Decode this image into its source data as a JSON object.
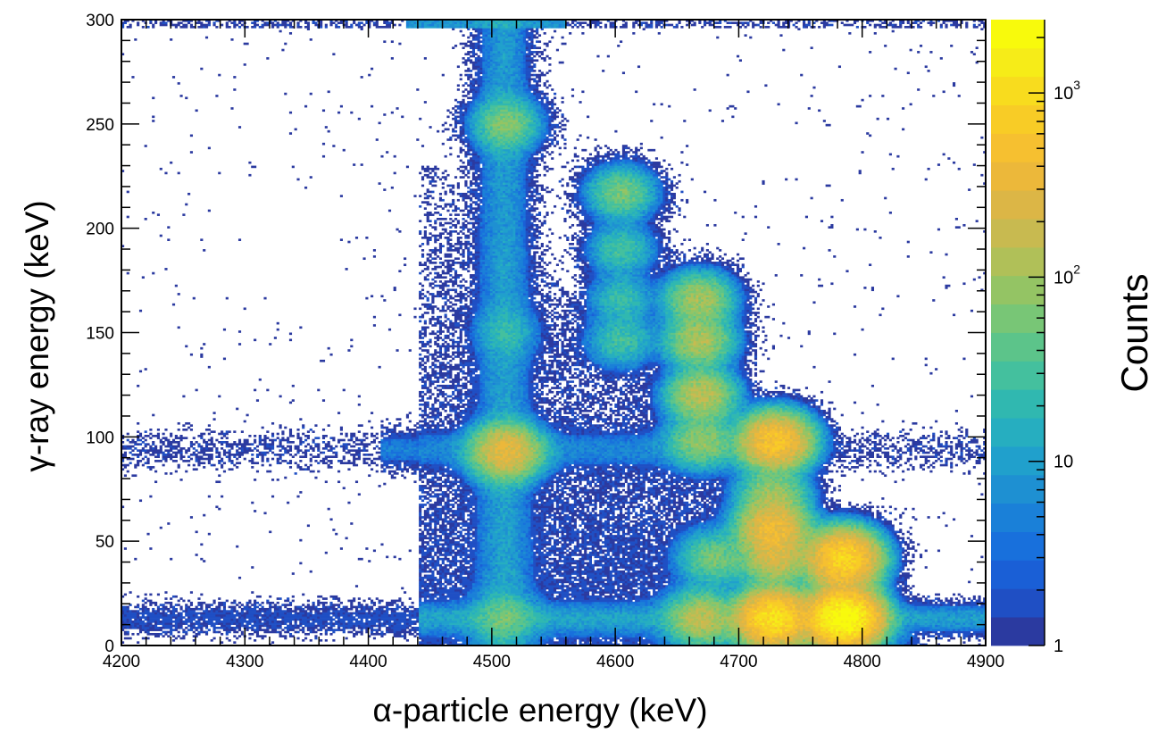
{
  "chart_data": {
    "type": "heatmap",
    "title": "",
    "xlabel": "α-particle energy (keV)",
    "ylabel": "γ-ray energy (keV)",
    "xlim": [
      4200,
      4900
    ],
    "ylim": [
      0,
      300
    ],
    "x_ticks": [
      {
        "value": 4200,
        "label": "4200"
      },
      {
        "value": 4300,
        "label": "4300"
      },
      {
        "value": 4400,
        "label": "4400"
      },
      {
        "value": 4500,
        "label": "4500"
      },
      {
        "value": 4600,
        "label": "4600"
      },
      {
        "value": 4700,
        "label": "4700"
      },
      {
        "value": 4800,
        "label": "4800"
      },
      {
        "value": 4900,
        "label": "4900"
      }
    ],
    "y_ticks": [
      {
        "value": 0,
        "label": "0"
      },
      {
        "value": 50,
        "label": "50"
      },
      {
        "value": 100,
        "label": "100"
      },
      {
        "value": 150,
        "label": "150"
      },
      {
        "value": 200,
        "label": "200"
      },
      {
        "value": 250,
        "label": "250"
      },
      {
        "value": 300,
        "label": "300"
      }
    ],
    "colorbar": {
      "title": "Counts",
      "scale": "log",
      "range": [
        1,
        2500
      ],
      "labels": [
        {
          "value": 1,
          "base": "1",
          "exp": ""
        },
        {
          "value": 10,
          "base": "10",
          "exp": ""
        },
        {
          "value": 100,
          "base": "10",
          "exp": "2"
        },
        {
          "value": 1000,
          "base": "10",
          "exp": "3"
        }
      ],
      "colors": [
        "#2b3aa0",
        "#1f4fc4",
        "#1a5fd6",
        "#1870dc",
        "#1a80d8",
        "#1e90d2",
        "#20a0cc",
        "#26aec0",
        "#30b8b0",
        "#44c09e",
        "#5cc48a",
        "#78c676",
        "#94c464",
        "#b0c058",
        "#c8ba50",
        "#dcb646",
        "#ecb83a",
        "#f6c030",
        "#f8cc26",
        "#f8dc1e",
        "#f6ec18",
        "#f8fa0c"
      ]
    },
    "peaks": [
      {
        "x": 4785,
        "y": 13,
        "counts": 2400
      },
      {
        "x": 4728,
        "y": 13,
        "counts": 1200
      },
      {
        "x": 4670,
        "y": 13,
        "counts": 150
      },
      {
        "x": 4510,
        "y": 13,
        "counts": 40
      },
      {
        "x": 4785,
        "y": 42,
        "counts": 900
      },
      {
        "x": 4730,
        "y": 42,
        "counts": 200
      },
      {
        "x": 4680,
        "y": 42,
        "counts": 60
      },
      {
        "x": 4785,
        "y": 30,
        "counts": 80
      },
      {
        "x": 4728,
        "y": 56,
        "counts": 400
      },
      {
        "x": 4728,
        "y": 72,
        "counts": 100
      },
      {
        "x": 4730,
        "y": 98,
        "counts": 600
      },
      {
        "x": 4670,
        "y": 98,
        "counts": 80
      },
      {
        "x": 4512,
        "y": 93,
        "counts": 300
      },
      {
        "x": 4670,
        "y": 120,
        "counts": 150
      },
      {
        "x": 4668,
        "y": 146,
        "counts": 120
      },
      {
        "x": 4668,
        "y": 166,
        "counts": 110
      },
      {
        "x": 4605,
        "y": 146,
        "counts": 30
      },
      {
        "x": 4605,
        "y": 166,
        "counts": 25
      },
      {
        "x": 4605,
        "y": 190,
        "counts": 30
      },
      {
        "x": 4605,
        "y": 217,
        "counts": 60
      },
      {
        "x": 4512,
        "y": 250,
        "counts": 60
      },
      {
        "x": 4512,
        "y": 150,
        "counts": 15
      }
    ]
  }
}
